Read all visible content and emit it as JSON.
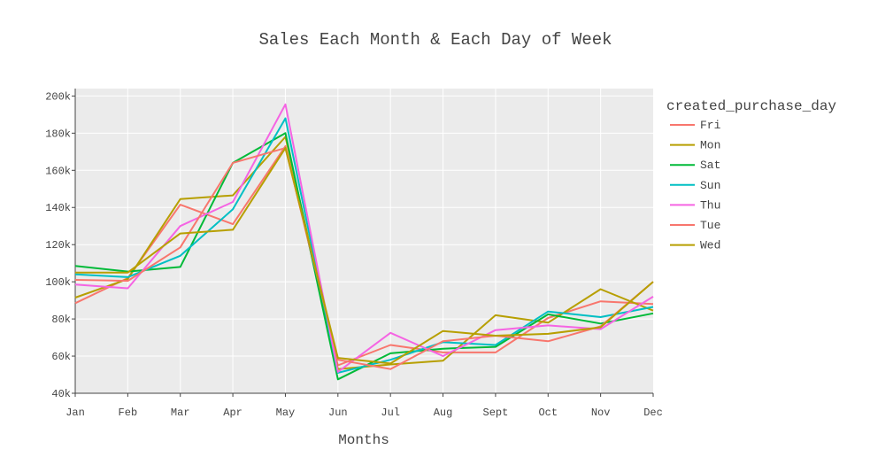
{
  "chart_data": {
    "type": "line",
    "title": "Sales Each Month & Each Day of Week",
    "xlabel": "Months",
    "ylabel": "",
    "categories": [
      "Jan",
      "Feb",
      "Mar",
      "Apr",
      "May",
      "Jun",
      "Jul",
      "Aug",
      "Sept",
      "Oct",
      "Nov",
      "Dec"
    ],
    "ylim": [
      40000,
      204000
    ],
    "yticks": [
      40000,
      60000,
      80000,
      100000,
      120000,
      140000,
      160000,
      180000,
      200000
    ],
    "ytick_labels": [
      "40k",
      "60k",
      "80k",
      "100k",
      "120k",
      "140k",
      "160k",
      "180k",
      "200k"
    ],
    "grid": true,
    "legend": {
      "title": "created_purchase_day",
      "placement": "right"
    },
    "series": [
      {
        "name": "Fri",
        "color": "#F8766D",
        "values": [
          88500,
          102000,
          141500,
          131000,
          173000,
          55000,
          66000,
          62000,
          62000,
          80500,
          89500,
          88000
        ]
      },
      {
        "name": "Mon",
        "color": "#B79F00",
        "values": [
          91500,
          101500,
          144500,
          146500,
          178000,
          53000,
          55500,
          57500,
          82000,
          78000,
          96000,
          84500
        ]
      },
      {
        "name": "Sat",
        "color": "#00BA38",
        "values": [
          108500,
          105500,
          108000,
          164000,
          180000,
          47500,
          61500,
          64000,
          65000,
          82500,
          77500,
          83000
        ]
      },
      {
        "name": "Sun",
        "color": "#00BFC4",
        "values": [
          104000,
          102500,
          114000,
          139000,
          188000,
          51000,
          58000,
          67500,
          66000,
          84000,
          81000,
          86500
        ]
      },
      {
        "name": "Thu",
        "color": "#F564E3",
        "values": [
          98500,
          96500,
          130000,
          143000,
          195500,
          51500,
          72500,
          60000,
          74000,
          76500,
          74500,
          92000
        ]
      },
      {
        "name": "Tue",
        "color": "#F8766D",
        "values": [
          101000,
          100500,
          118500,
          164000,
          172000,
          58000,
          53000,
          68000,
          71000,
          68000,
          76000,
          100000
        ]
      },
      {
        "name": "Wed",
        "color": "#B79F00",
        "values": [
          105000,
          105000,
          126000,
          128000,
          172000,
          59000,
          56000,
          73500,
          71000,
          72000,
          75500,
          100000
        ]
      }
    ]
  }
}
